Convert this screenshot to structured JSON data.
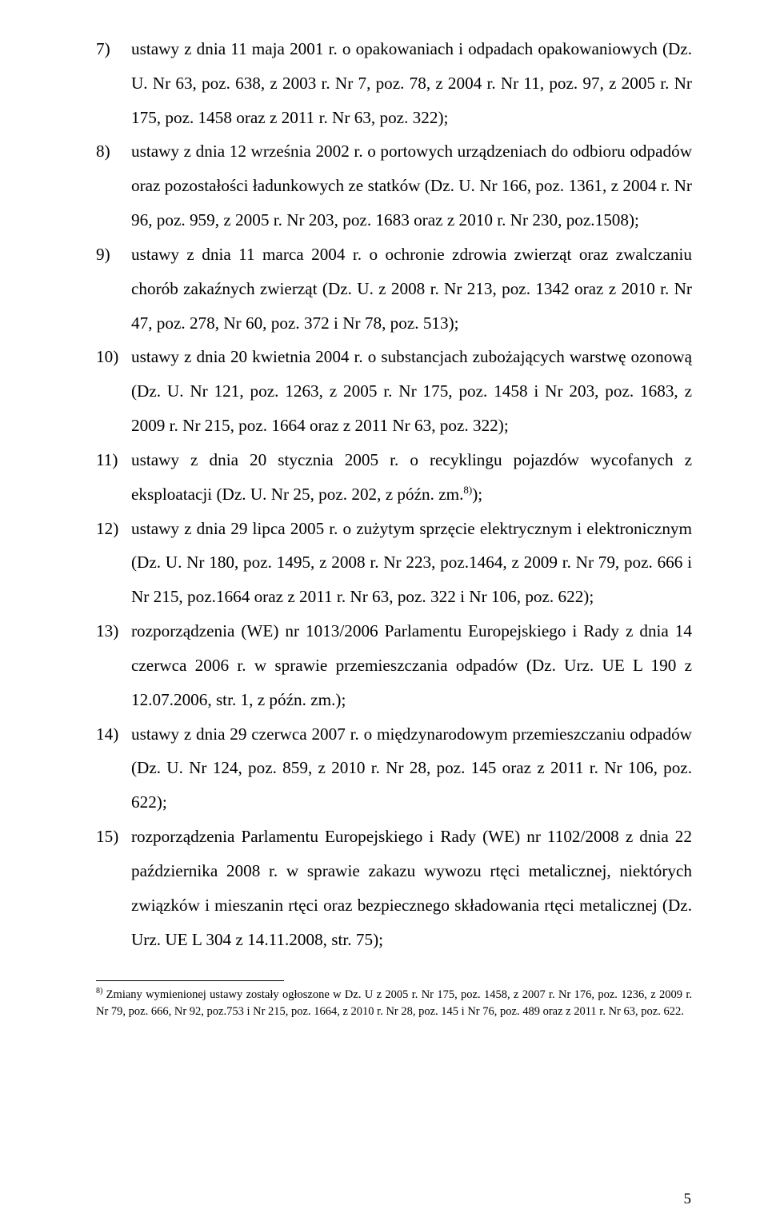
{
  "items": [
    {
      "num": "7)",
      "text": "ustawy z dnia 11 maja 2001 r. o opakowaniach i odpadach opakowaniowych (Dz. U. Nr 63, poz. 638, z 2003 r. Nr 7, poz. 78, z 2004 r. Nr 11, poz. 97, z 2005 r. Nr 175, poz. 1458 oraz z 2011 r. Nr 63, poz. 322);"
    },
    {
      "num": "8)",
      "text": "ustawy z dnia 12 września 2002 r. o portowych urządzeniach do odbioru odpadów oraz pozostałości ładunkowych ze statków (Dz. U. Nr 166, poz. 1361, z 2004 r. Nr 96, poz. 959, z 2005 r. Nr 203, poz. 1683 oraz z 2010 r. Nr 230, poz.1508);"
    },
    {
      "num": "9)",
      "text": "ustawy z dnia 11 marca 2004 r. o ochronie zdrowia zwierząt oraz zwalczaniu chorób zakaźnych zwierząt (Dz. U. z 2008 r. Nr 213, poz. 1342 oraz z 2010 r. Nr 47, poz. 278, Nr 60, poz. 372 i Nr 78, poz. 513);"
    },
    {
      "num": "10)",
      "text": "ustawy z dnia 20 kwietnia 2004 r. o substancjach zubożających warstwę ozonową (Dz. U. Nr 121, poz. 1263, z 2005 r. Nr 175, poz. 1458 i Nr 203, poz. 1683,  z 2009 r. Nr 215, poz. 1664 oraz z 2011 Nr 63, poz. 322);"
    },
    {
      "num": "11)",
      "text_a": "ustawy z dnia 20 stycznia 2005 r. o recyklingu pojazdów wycofanych z eksploatacji (Dz. U. Nr 25, poz. 202, z późn. zm.",
      "sup": "8)",
      "text_b": ");"
    },
    {
      "num": "12)",
      "text": "ustawy z dnia 29 lipca 2005 r. o zużytym sprzęcie elektrycznym i elektronicznym (Dz. U. Nr 180, poz. 1495, z 2008 r.  Nr 223, poz.1464, z 2009 r. Nr 79, poz. 666 i Nr 215, poz.1664 oraz z 2011 r. Nr 63, poz. 322 i Nr 106, poz. 622);"
    },
    {
      "num": "13)",
      "text": "rozporządzenia (WE) nr 1013/2006 Parlamentu Europejskiego i Rady z dnia 14 czerwca 2006 r. w sprawie przemieszczania odpadów (Dz. Urz. UE L 190 z 12.07.2006, str. 1, z późn. zm.);"
    },
    {
      "num": "14)",
      "text": "ustawy z dnia 29 czerwca 2007 r. o międzynarodowym przemieszczaniu odpadów (Dz. U. Nr 124, poz. 859, z 2010 r. Nr 28, poz. 145 oraz z 2011 r. Nr 106, poz. 622);"
    },
    {
      "num": "15)",
      "text": "rozporządzenia Parlamentu Europejskiego i Rady (WE) nr 1102/2008 z dnia 22 października 2008 r. w sprawie zakazu wywozu rtęci metalicznej, niektórych związków i mieszanin rtęci oraz bezpiecznego składowania rtęci metalicznej (Dz. Urz. UE L 304 z 14.11.2008, str. 75);"
    }
  ],
  "footnote": {
    "sup": "8)",
    "text": " Zmiany wymienionej ustawy zostały ogłoszone w Dz. U z 2005 r. Nr 175, poz. 1458, z 2007 r. Nr 176, poz. 1236, z 2009 r. Nr 79, poz. 666, Nr 92, poz.753 i Nr 215, poz. 1664, z 2010 r. Nr 28, poz. 145 i Nr 76, poz. 489 oraz z 2011 r. Nr 63, poz. 622."
  },
  "page_number": "5"
}
